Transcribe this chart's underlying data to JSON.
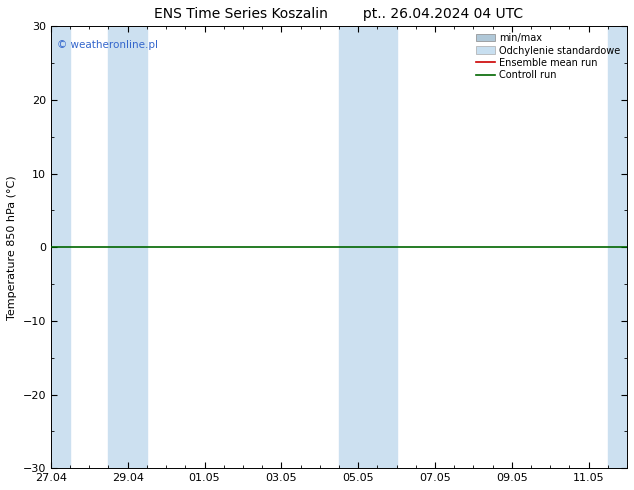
{
  "title": "ENS Time Series Koszalin        pt.. 26.04.2024 04 UTC",
  "ylabel": "Temperature 850 hPa (°C)",
  "ylim": [
    -30,
    30
  ],
  "yticks": [
    -30,
    -20,
    -10,
    0,
    10,
    20,
    30
  ],
  "xlim": [
    0,
    15.0
  ],
  "xtick_labels": [
    "27.04",
    "29.04",
    "01.05",
    "03.05",
    "05.05",
    "07.05",
    "09.05",
    "11.05"
  ],
  "xtick_positions": [
    0,
    2,
    4,
    6,
    8,
    10,
    12,
    14
  ],
  "shaded_regions": [
    [
      0.0,
      0.5
    ],
    [
      1.5,
      2.5
    ],
    [
      7.5,
      8.5
    ],
    [
      8.5,
      9.0
    ],
    [
      14.5,
      15.0
    ]
  ],
  "shade_color": "#cce0f0",
  "bg_color": "#ffffff",
  "zero_line_color": "#006600",
  "copyright_text": "© weatheronline.pl",
  "copyright_color": "#3366cc",
  "legend_minmax_color": "#aabbcc",
  "legend_std_color": "#c8dff0",
  "legend_ensemble_color": "#cc0000",
  "legend_control_color": "#006600",
  "title_fontsize": 10,
  "axis_fontsize": 8,
  "tick_fontsize": 8
}
